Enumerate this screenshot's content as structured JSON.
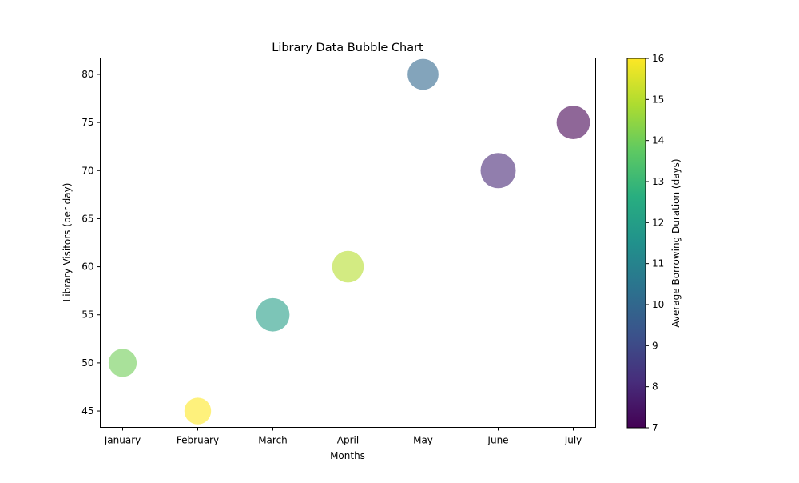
{
  "chart_data": {
    "type": "scatter",
    "title": "Library Data Bubble Chart",
    "xlabel": "Months",
    "ylabel": "Library Visitors (per day)",
    "categories": [
      "January",
      "February",
      "March",
      "April",
      "May",
      "June",
      "July"
    ],
    "ylim": [
      43.3,
      81.7
    ],
    "yticks": [
      45,
      50,
      55,
      60,
      65,
      70,
      75,
      80
    ],
    "series": [
      {
        "visitors": [
          50,
          45,
          55,
          60,
          80,
          70,
          75
        ],
        "avg_borrowing_duration": [
          14,
          16,
          12,
          15,
          10,
          8,
          7
        ],
        "relative_bubble_size": [
          0.8,
          0.76,
          0.95,
          0.9,
          0.88,
          1.0,
          0.95
        ]
      }
    ],
    "colorbar": {
      "label": "Average Borrowing Duration (days)",
      "min": 7,
      "max": 16,
      "ticks": [
        7,
        8,
        9,
        10,
        11,
        12,
        13,
        14,
        15,
        16
      ],
      "colormap": "viridis"
    },
    "bubble_alpha": 0.6,
    "grid": false,
    "legend": "none"
  }
}
